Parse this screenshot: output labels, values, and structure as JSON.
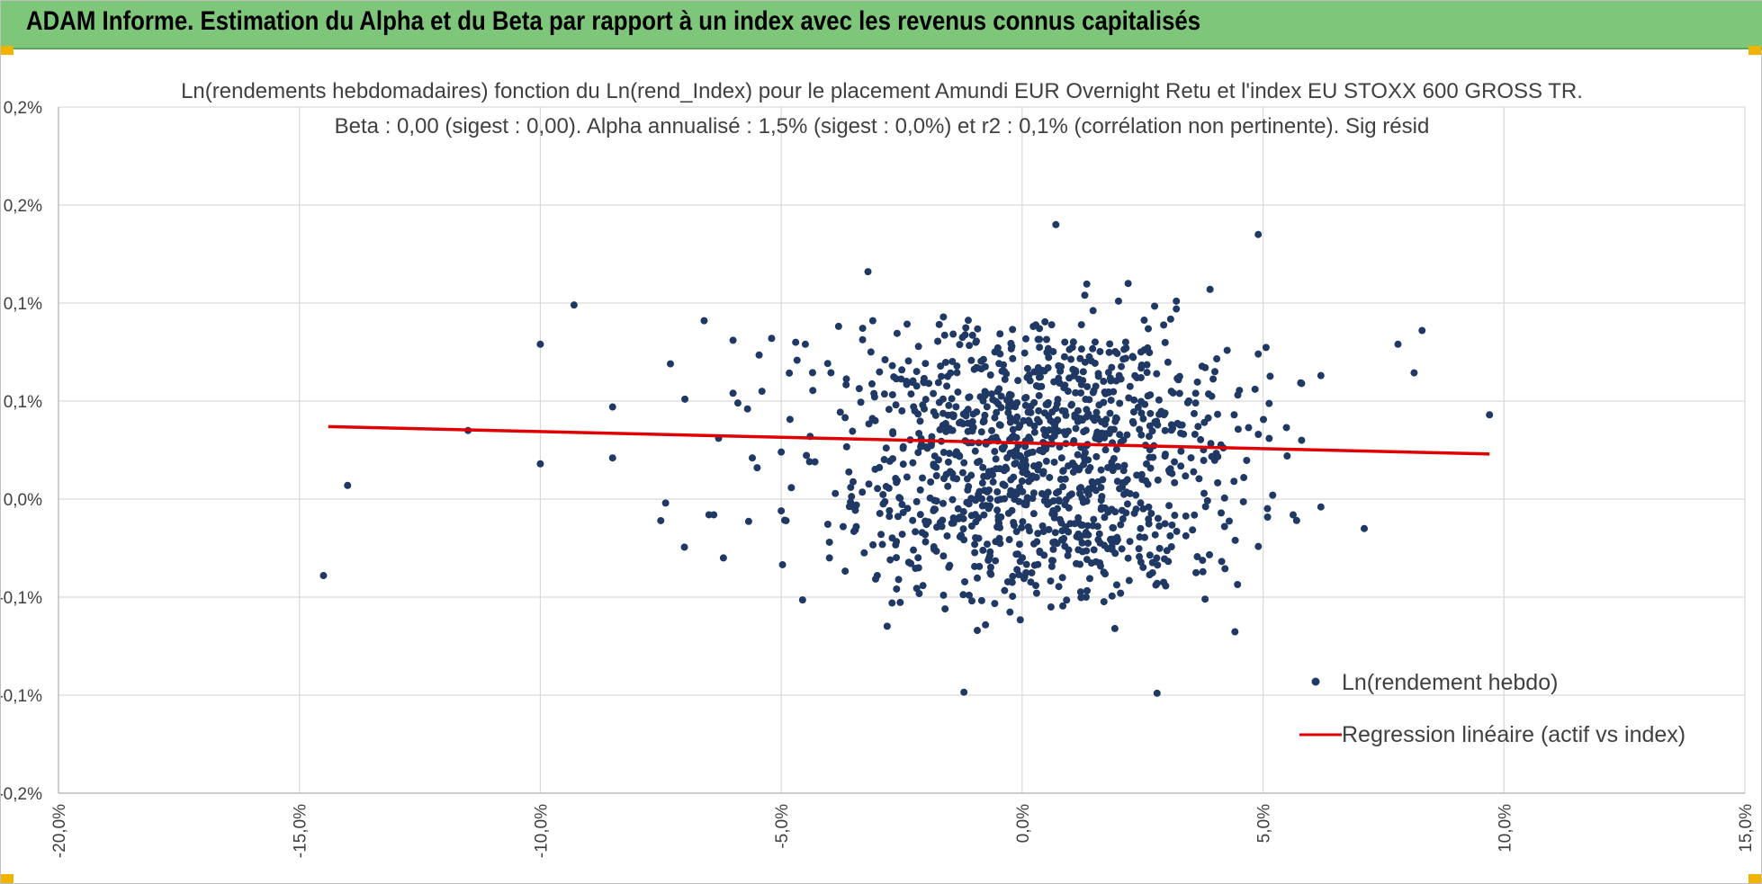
{
  "banner": {
    "title": "ADAM Informe. Estimation du Alpha et du Beta par rapport à un index avec les revenus connus capitalisés"
  },
  "colors": {
    "banner": "#7dc67a",
    "points": "#1f3864",
    "regression": "#e00000",
    "grid": "#d9d9d9",
    "corner_marker": "#f0b400"
  },
  "chart_data": {
    "type": "scatter",
    "title_line1": "Ln(rendements hebdomadaires) fonction du Ln(rend_Index) pour le placement Amundi EUR Overnight Retu et l'index EU STOXX 600 GROSS TR.",
    "title_line2": "Beta : 0,00 (sigest : 0,00). Alpha annualisé : 1,5% (sigest : 0,0%) et r2 : 0,1% (corrélation non pertinente). Sig résid",
    "xlabel": "",
    "ylabel": "",
    "xlim": [
      -0.2,
      0.15
    ],
    "ylim": [
      -0.0015,
      0.002
    ],
    "x_ticks": [
      -0.2,
      -0.15,
      -0.1,
      -0.05,
      0.0,
      0.05,
      0.1,
      0.15
    ],
    "x_tick_labels": [
      "-20,0%",
      "-15,0%",
      "-10,0%",
      "-5,0%",
      "0,0%",
      "5,0%",
      "10,0%",
      "15,0%"
    ],
    "y_ticks": [
      0.002,
      0.0015,
      0.001,
      0.0005,
      0.0,
      -0.0005,
      -0.001,
      -0.0015
    ],
    "y_tick_labels": [
      "0,2%",
      "0,2%",
      "0,1%",
      "0,1%",
      "0,0%",
      "-0,1%",
      "-0,1%",
      "-0,2%"
    ],
    "grid": true,
    "legend_position": "bottom-right",
    "series": [
      {
        "name": "Ln(rendement hebdo)",
        "kind": "scatter",
        "generated_cloud": {
          "count": 1150,
          "seed": 20240,
          "cluster_centers_y": [
            0.00048,
            -0.0001
          ],
          "x_center": 0.002,
          "x_spread": 0.02,
          "y_spread": 0.00022
        },
        "points": [
          {
            "x": -0.145,
            "y": -0.00039
          },
          {
            "x": -0.14,
            "y": 7e-05
          },
          {
            "x": -0.115,
            "y": 0.00035
          },
          {
            "x": -0.1,
            "y": 0.00079
          },
          {
            "x": -0.1,
            "y": 0.00018
          },
          {
            "x": -0.093,
            "y": 0.00099
          },
          {
            "x": -0.085,
            "y": 0.00047
          },
          {
            "x": -0.085,
            "y": 0.00021
          },
          {
            "x": -0.075,
            "y": -0.00011
          },
          {
            "x": -0.074,
            "y": -2e-05
          },
          {
            "x": -0.073,
            "y": 0.00069
          },
          {
            "x": -0.07,
            "y": 0.00051
          },
          {
            "x": -0.066,
            "y": 0.00091
          },
          {
            "x": -0.065,
            "y": -8e-05
          },
          {
            "x": -0.064,
            "y": -8e-05
          },
          {
            "x": -0.063,
            "y": 0.00031
          },
          {
            "x": -0.062,
            "y": -0.0003
          },
          {
            "x": -0.06,
            "y": 0.00081
          },
          {
            "x": -0.06,
            "y": 0.00054
          },
          {
            "x": -0.059,
            "y": 0.00049
          },
          {
            "x": -0.057,
            "y": 0.00046
          },
          {
            "x": -0.056,
            "y": 0.00021
          },
          {
            "x": -0.055,
            "y": 0.00016
          },
          {
            "x": -0.054,
            "y": 0.00055
          },
          {
            "x": -0.052,
            "y": 0.00082
          },
          {
            "x": -0.05,
            "y": 0.00024
          },
          {
            "x": -0.05,
            "y": -6e-05
          },
          {
            "x": -0.049,
            "y": -0.00011
          },
          {
            "x": -0.047,
            "y": 0.0008
          },
          {
            "x": -0.045,
            "y": 0.00079
          },
          {
            "x": -0.044,
            "y": 0.00032
          },
          {
            "x": -0.043,
            "y": 0.00019
          },
          {
            "x": -0.04,
            "y": -0.00022
          },
          {
            "x": -0.04,
            "y": -0.0003
          },
          {
            "x": -0.032,
            "y": 0.00116
          },
          {
            "x": -0.031,
            "y": 0.00091
          },
          {
            "x": -0.027,
            "y": -0.00053
          },
          {
            "x": -0.016,
            "y": -0.00056
          },
          {
            "x": -0.011,
            "y": -0.00049
          },
          {
            "x": 0.003,
            "y": -0.00048
          },
          {
            "x": 0.007,
            "y": 0.0014
          },
          {
            "x": 0.013,
            "y": 0.00104
          },
          {
            "x": 0.02,
            "y": 0.00101
          },
          {
            "x": 0.022,
            "y": 0.0011
          },
          {
            "x": 0.028,
            "y": -0.00099
          },
          {
            "x": 0.028,
            "y": -0.00043
          },
          {
            "x": 0.032,
            "y": 0.00097
          },
          {
            "x": 0.032,
            "y": 0.00101
          },
          {
            "x": 0.036,
            "y": 0.00049
          },
          {
            "x": 0.039,
            "y": 0.00107
          },
          {
            "x": 0.04,
            "y": 0.00065
          },
          {
            "x": 0.042,
            "y": -0.00014
          },
          {
            "x": 0.044,
            "y": 0.00043
          },
          {
            "x": 0.046,
            "y": 0.00011
          },
          {
            "x": 0.049,
            "y": 0.00074
          },
          {
            "x": 0.049,
            "y": 0.00135
          },
          {
            "x": 0.052,
            "y": 2e-05
          },
          {
            "x": 0.055,
            "y": 0.00022
          },
          {
            "x": 0.058,
            "y": 0.0003
          },
          {
            "x": 0.058,
            "y": 0.00059
          },
          {
            "x": 0.062,
            "y": 0.00063
          },
          {
            "x": 0.062,
            "y": -4e-05
          },
          {
            "x": 0.071,
            "y": -0.00015
          },
          {
            "x": 0.078,
            "y": 0.00079
          },
          {
            "x": 0.083,
            "y": 0.00086
          },
          {
            "x": 0.097,
            "y": 0.00043
          }
        ]
      },
      {
        "name": "Regression linéaire (actif vs index)",
        "kind": "line",
        "x": [
          -0.144,
          0.097
        ],
        "y": [
          0.00037,
          0.00023
        ]
      }
    ]
  }
}
